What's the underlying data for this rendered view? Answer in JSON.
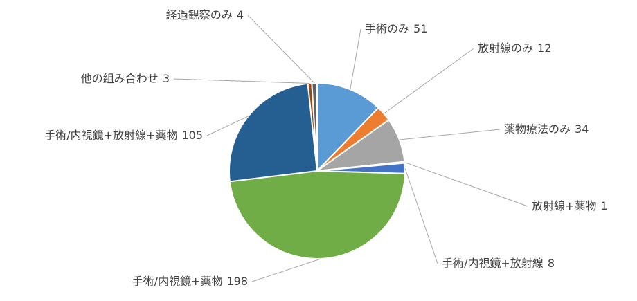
{
  "chart_data": {
    "type": "pie",
    "categories": [
      "手術のみ",
      "放射線のみ",
      "薬物療法のみ",
      "放射線+薬物",
      "手術/内視鏡+放射線",
      "手術/内視鏡+薬物",
      "手術/内視鏡+放射線+薬物",
      "他の組み合わせ",
      "経過観察のみ"
    ],
    "values": [
      51,
      12,
      34,
      1,
      8,
      198,
      105,
      3,
      4
    ],
    "colors": [
      "#5b9bd5",
      "#ed7d31",
      "#a5a5a5",
      "#ffc000",
      "#4472c4",
      "#70ad47",
      "#255e91",
      "#9e480e",
      "#636363"
    ]
  }
}
